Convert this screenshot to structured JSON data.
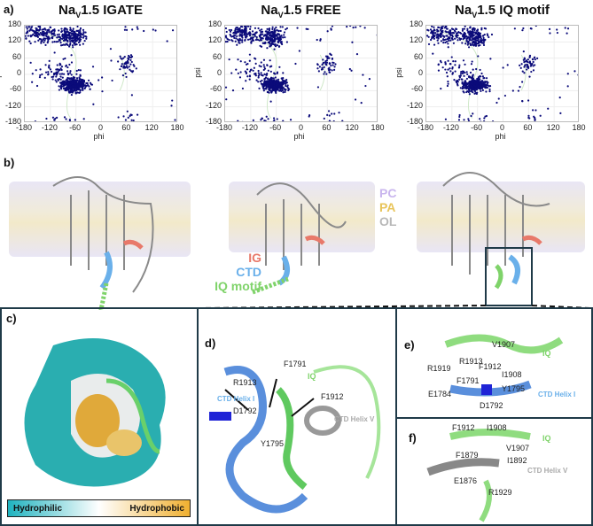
{
  "panel_labels": {
    "a": "a)",
    "b": "b)",
    "c": "c)",
    "d": "d)",
    "e": "e)",
    "f": "f)"
  },
  "ramachandran": [
    {
      "title_pre": "Na",
      "title_sub": "V",
      "title_post": "1.5 IGATE"
    },
    {
      "title_pre": "Na",
      "title_sub": "V",
      "title_post": "1.5 FREE"
    },
    {
      "title_pre": "Na",
      "title_sub": "V",
      "title_post": "1.5 IQ motif"
    }
  ],
  "axes": {
    "xlabel": "phi",
    "ylabel": "psi",
    "xticks": [
      "-180",
      "-120",
      "-60",
      "0",
      "60",
      "120",
      "180"
    ],
    "yticks": [
      "180",
      "120",
      "60",
      "0",
      "-60",
      "-120",
      "-180"
    ],
    "point_color": "#0b0b7a"
  },
  "legend_lipids": [
    {
      "label": "PC",
      "color": "#c9b6ee"
    },
    {
      "label": "PA",
      "color": "#e8c45a"
    },
    {
      "label": "OL",
      "color": "#b8b8b8"
    }
  ],
  "legend_domains": [
    {
      "label": "IG",
      "color": "#e8796a"
    },
    {
      "label": "CTD",
      "color": "#6ab0ea"
    },
    {
      "label": "IQ motif",
      "color": "#7fd36a"
    }
  ],
  "panel_c": {
    "colorbar_left": "Hydrophilic",
    "colorbar_right": "Hydrophobic"
  },
  "panel_d": {
    "labels": [
      "F1791",
      "R1913",
      "IQ",
      "F1912",
      "CTD Helix I",
      "D1792",
      "CTD Helix V",
      "Y1795"
    ]
  },
  "panel_e": {
    "labels": [
      "V1907",
      "IQ",
      "R1913",
      "R1919",
      "F1912",
      "I1908",
      "F1791",
      "Y1795",
      "E1784",
      "CTD Helix I",
      "D1792"
    ]
  },
  "panel_f": {
    "labels": [
      "F1912",
      "I1908",
      "IQ",
      "V1907",
      "F1879",
      "I1892",
      "CTD Helix V",
      "E1876",
      "R1929"
    ]
  }
}
